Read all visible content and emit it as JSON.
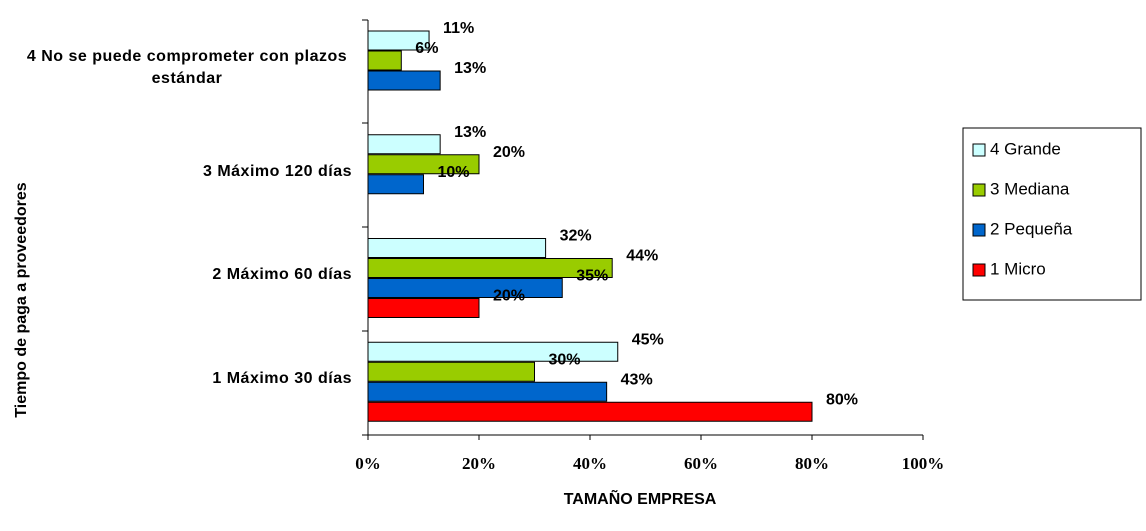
{
  "chart_data": {
    "type": "bar",
    "orientation": "horizontal",
    "x_label": "TAMAÑO EMPRESA",
    "y_label": "Tiempo de paga  a  proveedores",
    "categories": [
      "1  Máximo 30 días",
      "2  Máximo 60 días",
      "3  Máximo 120 días",
      "4  No se puede comprometer con plazos estándar"
    ],
    "series": [
      {
        "name": "4  Grande",
        "color": "#ccffff",
        "values": [
          45,
          32,
          13,
          11
        ],
        "value_labels": [
          "45%",
          "32%",
          "13%",
          "11%"
        ]
      },
      {
        "name": "3  Mediana",
        "color": "#99cc00",
        "values": [
          30,
          44,
          20,
          6
        ],
        "value_labels": [
          "30%",
          "44%",
          "20%",
          "6%"
        ]
      },
      {
        "name": "2  Pequeña",
        "color": "#0066cc",
        "values": [
          43,
          35,
          10,
          13
        ],
        "value_labels": [
          "43%",
          "35%",
          "10%",
          "13%"
        ]
      },
      {
        "name": "1  Micro",
        "color": "#ff0000",
        "values": [
          80,
          20,
          null,
          null
        ],
        "value_labels": [
          "80%",
          "20%",
          null,
          null
        ]
      }
    ],
    "xlim": [
      0,
      100
    ],
    "xticks": [
      {
        "value": 0,
        "label": "0%"
      },
      {
        "value": 20,
        "label": "20%"
      },
      {
        "value": 40,
        "label": "40%"
      },
      {
        "value": 60,
        "label": "60%"
      },
      {
        "value": 80,
        "label": "80%"
      },
      {
        "value": 100,
        "label": "100%"
      }
    ],
    "legend": "right"
  }
}
